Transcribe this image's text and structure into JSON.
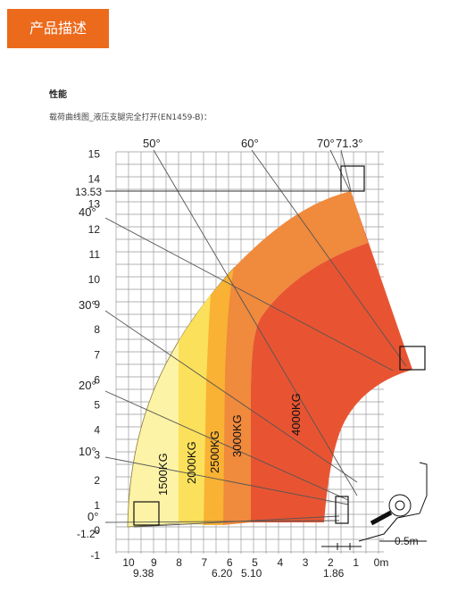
{
  "header": {
    "tab_label": "产品描述"
  },
  "section": {
    "title": "性能",
    "caption": "载荷曲线图_液压支腿完全打开(EN1459-B)："
  },
  "chart_data": {
    "type": "load_chart",
    "y_ticks": [
      "-1",
      "0",
      "1",
      "2",
      "3",
      "4",
      "5",
      "6",
      "7",
      "8",
      "9",
      "10",
      "11",
      "12",
      "13",
      "14",
      "15"
    ],
    "x_ticks": [
      "10",
      "9",
      "8",
      "7",
      "6",
      "5",
      "4",
      "3",
      "2",
      "1",
      "0m"
    ],
    "y_special": [
      "13.53",
      "-1.2°"
    ],
    "x_special": [
      "9.38",
      "6.20",
      "5.10",
      "1.86"
    ],
    "angles_top": [
      "50°",
      "60°",
      "70°",
      "71.3°"
    ],
    "angles_left": [
      "40°",
      "30°",
      "20°",
      "10°",
      "0°"
    ],
    "zones": [
      {
        "label": "1500KG",
        "color": "#fdf3a6"
      },
      {
        "label": "2000KG",
        "color": "#fbe15b"
      },
      {
        "label": "2500KG",
        "color": "#f9b234"
      },
      {
        "label": "3000KG",
        "color": "#f08a3c"
      },
      {
        "label": "4000KG",
        "color": "#e85432"
      }
    ],
    "scale_label": "0.5m",
    "grid": true
  }
}
